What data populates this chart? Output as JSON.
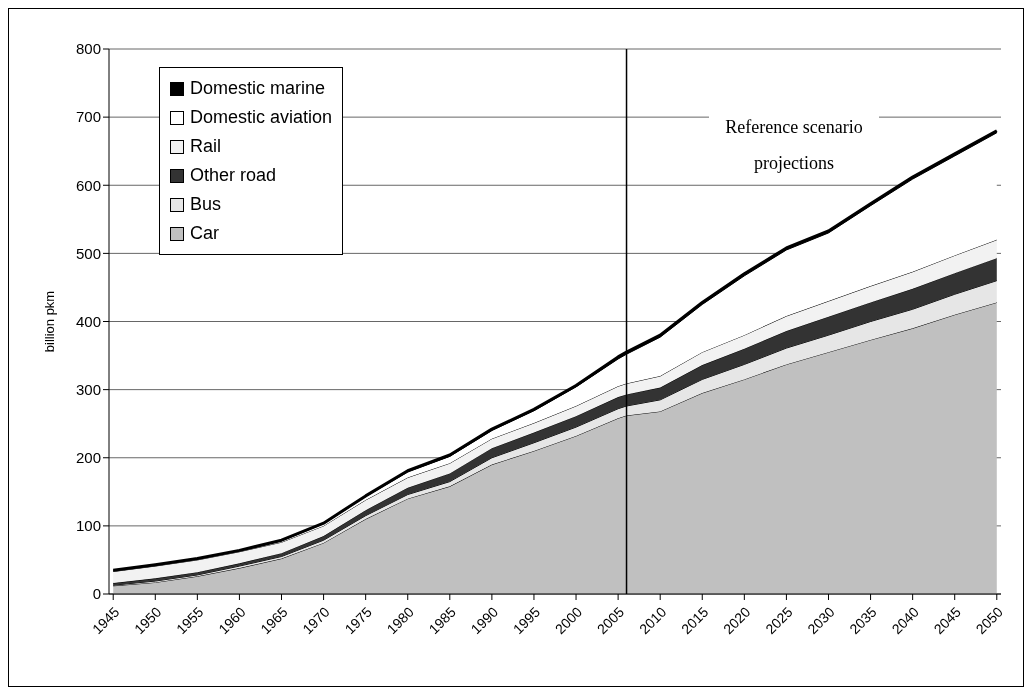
{
  "chart_data": {
    "type": "area",
    "stacked": true,
    "ylabel": "billion pkm",
    "x": [
      1945,
      1950,
      1955,
      1960,
      1965,
      1970,
      1975,
      1980,
      1985,
      1990,
      1995,
      2000,
      2005,
      2006,
      2010,
      2015,
      2020,
      2025,
      2030,
      2035,
      2040,
      2045,
      2050
    ],
    "series": [
      {
        "name": "Car",
        "color": "#c0c0c0",
        "values": [
          12,
          17,
          26,
          38,
          52,
          75,
          110,
          140,
          158,
          190,
          210,
          232,
          258,
          262,
          268,
          295,
          315,
          337,
          355,
          373,
          390,
          410,
          428
        ]
      },
      {
        "name": "Bus",
        "color": "#e6e6e6",
        "values": [
          1,
          2,
          2,
          3,
          3,
          4,
          5,
          6,
          7,
          10,
          12,
          13,
          14,
          14,
          17,
          20,
          22,
          24,
          25,
          27,
          28,
          30,
          32
        ]
      },
      {
        "name": "Other road",
        "color": "#333333",
        "values": [
          3,
          4,
          4,
          4,
          5,
          6,
          8,
          10,
          12,
          14,
          15,
          16,
          17,
          17,
          18,
          21,
          23,
          25,
          27,
          28,
          30,
          31,
          33
        ]
      },
      {
        "name": "Rail",
        "color": "#f2f2f2",
        "values": [
          17,
          18,
          18,
          17,
          16,
          15,
          15,
          15,
          15,
          14,
          14,
          15,
          16,
          16,
          17,
          19,
          20,
          22,
          23,
          24,
          25,
          26,
          27
        ]
      },
      {
        "name": "Domestic aviation",
        "color": "#ffffff",
        "values": [
          1,
          1,
          1,
          1,
          2,
          3,
          5,
          8,
          10,
          12,
          18,
          28,
          40,
          43,
          57,
          70,
          87,
          97,
          100,
          118,
          136,
          146,
          157
        ]
      },
      {
        "name": "Domestic marine",
        "color": "#000000",
        "values": [
          1,
          1,
          1,
          1,
          1,
          1,
          1,
          2,
          2,
          2,
          2,
          2,
          3,
          3,
          3,
          3,
          3,
          3,
          3,
          3,
          3,
          3,
          3
        ]
      }
    ],
    "xlim": [
      1944.5,
      2050.5
    ],
    "xticks": [
      1945,
      1950,
      1955,
      1960,
      1965,
      1970,
      1975,
      1980,
      1985,
      1990,
      1995,
      2000,
      2005,
      2010,
      2015,
      2020,
      2025,
      2030,
      2035,
      2040,
      2045,
      2050
    ],
    "ylim": [
      0,
      800
    ],
    "yticks": [
      0,
      100,
      200,
      300,
      400,
      500,
      600,
      700,
      800
    ],
    "grid": "y",
    "legend": "top left",
    "ref_lines": [
      {
        "axis": "x",
        "value": 2006,
        "color": "#000000"
      }
    ],
    "annotations": [
      "Reference scenario projections"
    ]
  }
}
